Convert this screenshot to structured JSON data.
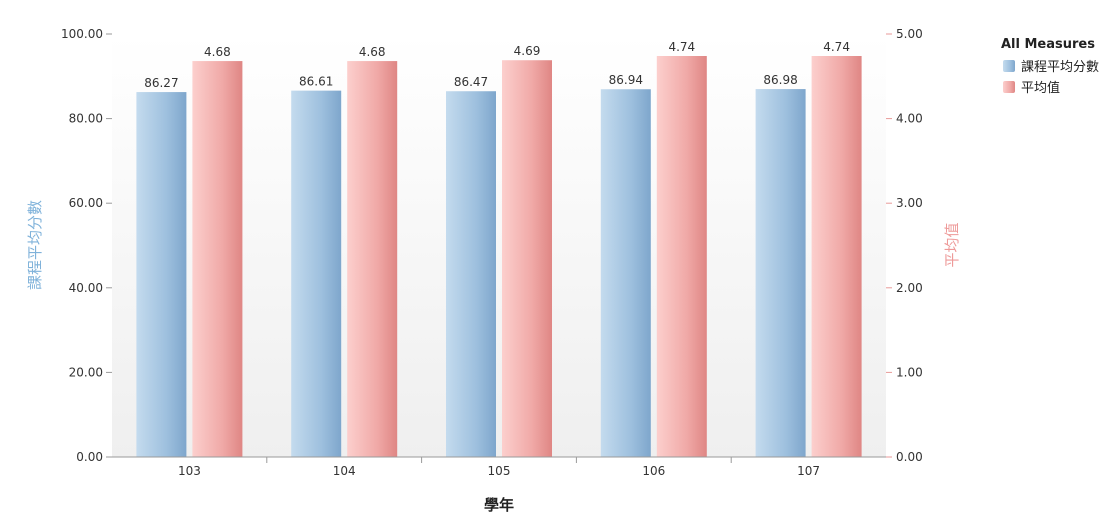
{
  "chart_data": {
    "type": "bar",
    "title": "",
    "xlabel": "學年",
    "categories": [
      "103",
      "104",
      "105",
      "106",
      "107"
    ],
    "y_left": {
      "label": "課程平均分數",
      "ticks": [
        "0.00",
        "20.00",
        "40.00",
        "60.00",
        "80.00",
        "100.00"
      ],
      "ylim": [
        0,
        100
      ]
    },
    "y_right": {
      "label": "平均值",
      "ticks": [
        "0.00",
        "1.00",
        "2.00",
        "3.00",
        "4.00",
        "5.00"
      ],
      "ylim": [
        0,
        5
      ]
    },
    "series": [
      {
        "name": "課程平均分數",
        "axis": "left",
        "values": [
          86.27,
          86.61,
          86.47,
          86.94,
          86.98
        ],
        "labels": [
          "86.27",
          "86.61",
          "86.47",
          "86.94",
          "86.98"
        ],
        "color": "#8fb4d6"
      },
      {
        "name": "平均值",
        "axis": "right",
        "values": [
          4.68,
          4.68,
          4.69,
          4.74,
          4.74
        ],
        "labels": [
          "4.68",
          "4.68",
          "4.69",
          "4.74",
          "4.74"
        ],
        "color": "#e8908f"
      }
    ],
    "legend": {
      "title": "All Measures",
      "position": "top-right"
    },
    "grid": false
  }
}
